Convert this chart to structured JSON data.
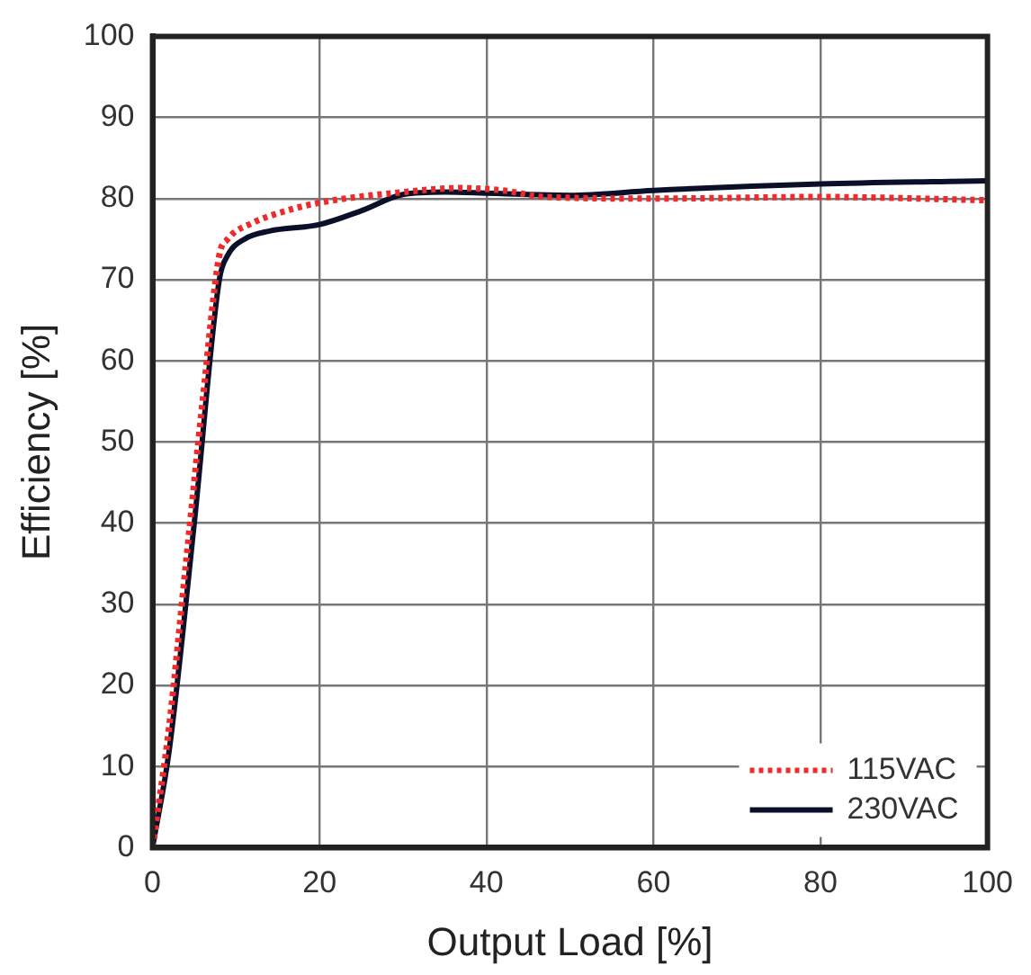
{
  "chart_data": {
    "type": "line",
    "xlabel": "Output Load [%]",
    "ylabel": "Efficiency [%]",
    "xlim": [
      0,
      100
    ],
    "xticks": [
      0,
      20,
      40,
      60,
      80,
      100
    ],
    "ylim": [
      0,
      100
    ],
    "yticks": [
      0,
      10,
      20,
      30,
      40,
      50,
      60,
      70,
      80,
      90,
      100
    ],
    "grid": true,
    "legend": "bottom right",
    "marker": "none",
    "series": [
      {
        "name": "115VAC",
        "color": "#ee2a2a",
        "line_style": "dotted",
        "x": [
          0,
          2,
          4,
          6,
          8,
          9,
          12,
          16,
          20,
          30,
          37,
          42,
          47,
          60,
          80,
          100
        ],
        "values": [
          0,
          15,
          35,
          55,
          73,
          75,
          77,
          78.5,
          79.5,
          80.8,
          81.3,
          81,
          80.2,
          80,
          80.2,
          79.8
        ]
      },
      {
        "name": "230VAC",
        "color": "#0a0f2a",
        "line_style": "solid",
        "x": [
          0,
          2,
          5,
          8,
          9,
          11,
          14,
          20,
          25,
          30,
          35,
          45,
          50,
          60,
          80,
          100
        ],
        "values": [
          0,
          12,
          40,
          70,
          73,
          75,
          76,
          76.8,
          78.5,
          80.5,
          80.8,
          80.5,
          80.4,
          81,
          81.8,
          82.2
        ]
      }
    ]
  }
}
